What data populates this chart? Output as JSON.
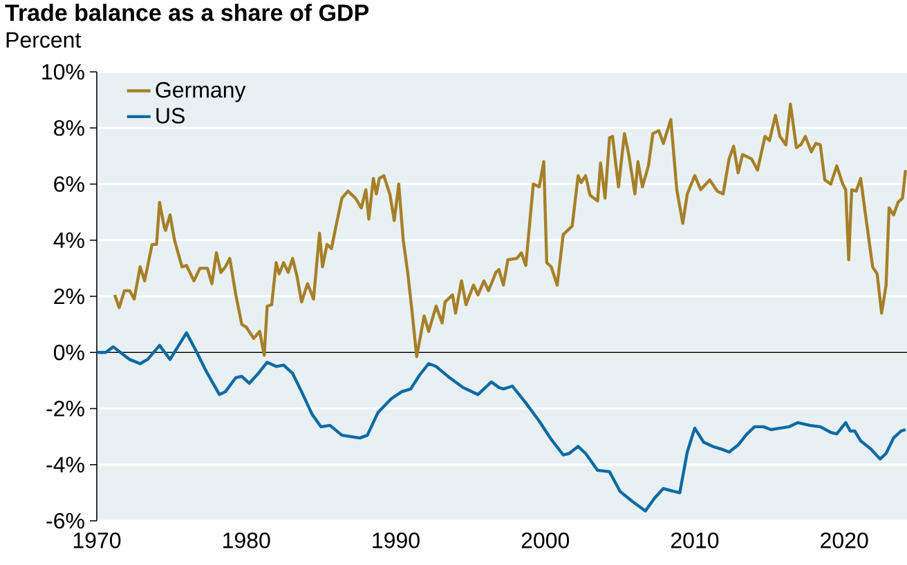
{
  "chart_data": {
    "type": "line",
    "title": "Trade balance as a share of GDP",
    "subtitle": "Percent",
    "xlim": [
      1970,
      2024.2
    ],
    "ylim": [
      -6,
      10
    ],
    "xticks": [
      1970,
      1980,
      1990,
      2000,
      2010,
      2020
    ],
    "yticks": [
      {
        "value": -6,
        "label": "-6%"
      },
      {
        "value": -4,
        "label": "-4%"
      },
      {
        "value": -2,
        "label": "-2%"
      },
      {
        "value": 0,
        "label": "0%"
      },
      {
        "value": 2,
        "label": "2%"
      },
      {
        "value": 4,
        "label": "4%"
      },
      {
        "value": 6,
        "label": "6%"
      },
      {
        "value": 8,
        "label": "8%"
      },
      {
        "value": 10,
        "label": "10%"
      }
    ],
    "grid": "y",
    "legend": "top left",
    "marker": "none",
    "line_style": "solid",
    "ref_lines": [
      {
        "axis": "y",
        "value": 0,
        "color": "#000000"
      }
    ],
    "series": [
      {
        "name": "Germany",
        "color": "#a67f27",
        "x": [
          1971.2,
          1971.5,
          1971.85,
          1972.2,
          1972.5,
          1972.9,
          1973.2,
          1973.7,
          1974.0,
          1974.2,
          1974.5,
          1974.6,
          1974.9,
          1975.2,
          1975.7,
          1976.0,
          1976.5,
          1976.9,
          1977.4,
          1977.7,
          1978.0,
          1978.3,
          1978.6,
          1978.9,
          1979.3,
          1979.7,
          1980.0,
          1980.5,
          1980.9,
          1981.2,
          1981.4,
          1981.7,
          1982.0,
          1982.2,
          1982.5,
          1982.8,
          1983.1,
          1983.4,
          1983.7,
          1984.1,
          1984.5,
          1984.9,
          1985.1,
          1985.4,
          1985.7,
          1986.0,
          1986.4,
          1986.8,
          1987.3,
          1987.7,
          1988.0,
          1988.2,
          1988.5,
          1988.7,
          1988.9,
          1989.2,
          1989.6,
          1989.9,
          1990.2,
          1990.5,
          1990.8,
          1991.1,
          1991.4,
          1991.9,
          1992.2,
          1992.7,
          1993.1,
          1993.3,
          1993.8,
          1994.0,
          1994.4,
          1994.7,
          1995.2,
          1995.5,
          1995.9,
          1996.2,
          1996.7,
          1996.9,
          1997.2,
          1997.5,
          1998.1,
          1998.4,
          1998.7,
          1999.2,
          1999.6,
          1999.9,
          2000.1,
          2000.4,
          2000.8,
          2001.2,
          2001.5,
          2001.8,
          2002.2,
          2002.4,
          2002.7,
          2003.0,
          2003.5,
          2003.7,
          2004.0,
          2004.3,
          2004.5,
          2004.9,
          2005.3,
          2005.6,
          2006.0,
          2006.2,
          2006.5,
          2006.9,
          2007.2,
          2007.6,
          2007.9,
          2008.4,
          2008.8,
          2009.2,
          2009.5,
          2010.0,
          2010.4,
          2011.0,
          2011.5,
          2011.9,
          2012.3,
          2012.6,
          2012.9,
          2013.2,
          2013.8,
          2014.2,
          2014.7,
          2015.0,
          2015.4,
          2015.7,
          2016.1,
          2016.4,
          2016.8,
          2017.1,
          2017.4,
          2017.8,
          2018.1,
          2018.4,
          2018.7,
          2019.1,
          2019.5,
          2019.9,
          2020.1,
          2020.3,
          2020.5,
          2020.8,
          2021.1,
          2021.4,
          2021.9,
          2022.2,
          2022.5,
          2022.8,
          2023.0,
          2023.3,
          2023.6,
          2023.9,
          2024.1
        ],
        "values": [
          2.05,
          1.6,
          2.2,
          2.2,
          1.9,
          3.05,
          2.55,
          3.85,
          3.85,
          5.35,
          4.5,
          4.35,
          4.9,
          4.0,
          3.05,
          3.1,
          2.55,
          3.0,
          3.0,
          2.45,
          3.55,
          2.85,
          3.05,
          3.35,
          2.05,
          1.0,
          0.9,
          0.5,
          0.75,
          -0.1,
          1.65,
          1.7,
          3.2,
          2.8,
          3.2,
          2.85,
          3.35,
          2.7,
          1.8,
          2.45,
          1.9,
          4.25,
          3.05,
          3.85,
          3.7,
          4.5,
          5.5,
          5.75,
          5.5,
          5.15,
          5.8,
          4.75,
          6.2,
          5.65,
          6.2,
          6.3,
          5.65,
          4.7,
          6.0,
          4.0,
          2.85,
          1.4,
          -0.15,
          1.3,
          0.75,
          1.65,
          1.05,
          1.8,
          2.05,
          1.4,
          2.55,
          1.7,
          2.4,
          2.05,
          2.55,
          2.2,
          2.85,
          2.95,
          2.4,
          3.3,
          3.35,
          3.55,
          3.1,
          6.0,
          5.9,
          6.8,
          3.2,
          3.05,
          2.4,
          4.2,
          4.35,
          4.5,
          6.3,
          6.05,
          6.3,
          5.6,
          5.4,
          6.75,
          5.5,
          7.65,
          7.7,
          5.9,
          7.8,
          7.0,
          5.65,
          6.8,
          5.9,
          6.65,
          7.8,
          7.9,
          7.45,
          8.3,
          5.8,
          4.6,
          5.65,
          6.3,
          5.8,
          6.15,
          5.75,
          5.65,
          6.9,
          7.35,
          6.4,
          7.05,
          6.9,
          6.5,
          7.7,
          7.55,
          8.45,
          7.7,
          7.4,
          8.85,
          7.3,
          7.4,
          7.7,
          7.15,
          7.45,
          7.4,
          6.15,
          6.0,
          6.65,
          6.0,
          5.8,
          3.3,
          5.8,
          5.75,
          6.2,
          5.0,
          3.05,
          2.8,
          1.4,
          2.4,
          5.15,
          4.9,
          5.35,
          5.5,
          6.5
        ]
      },
      {
        "name": "US",
        "color": "#0b6aa2",
        "x": [
          1970.0,
          1970.6,
          1971.1,
          1972.2,
          1972.9,
          1973.4,
          1974.2,
          1974.9,
          1976.0,
          1976.6,
          1977.3,
          1978.2,
          1978.6,
          1979.3,
          1979.7,
          1980.2,
          1980.8,
          1981.4,
          1982.0,
          1982.5,
          1983.1,
          1983.7,
          1984.4,
          1985.0,
          1985.6,
          1986.4,
          1987.0,
          1987.6,
          1988.1,
          1988.8,
          1989.7,
          1990.4,
          1991.0,
          1991.6,
          1992.2,
          1992.7,
          1993.6,
          1994.5,
          1995.5,
          1996.4,
          1996.9,
          1997.2,
          1997.8,
          1998.7,
          1999.6,
          2000.4,
          2001.2,
          2001.6,
          2002.2,
          2002.7,
          2003.5,
          2004.3,
          2005.0,
          2005.8,
          2006.7,
          2007.3,
          2007.9,
          2008.6,
          2009.0,
          2009.5,
          2010.0,
          2010.6,
          2011.2,
          2011.8,
          2012.3,
          2012.9,
          2013.5,
          2014.0,
          2014.6,
          2015.1,
          2015.7,
          2016.3,
          2016.9,
          2017.7,
          2018.4,
          2019.1,
          2019.5,
          2020.1,
          2020.4,
          2020.7,
          2021.1,
          2021.8,
          2022.4,
          2022.8,
          2023.3,
          2023.8,
          2024.1
        ],
        "values": [
          0,
          0,
          0.2,
          -0.25,
          -0.4,
          -0.25,
          0.25,
          -0.25,
          0.7,
          0.1,
          -0.65,
          -1.5,
          -1.4,
          -0.9,
          -0.85,
          -1.1,
          -0.75,
          -0.35,
          -0.5,
          -0.45,
          -0.75,
          -1.4,
          -2.2,
          -2.65,
          -2.6,
          -2.95,
          -3.0,
          -3.05,
          -2.95,
          -2.15,
          -1.65,
          -1.4,
          -1.3,
          -0.8,
          -0.4,
          -0.5,
          -0.9,
          -1.25,
          -1.5,
          -1.05,
          -1.25,
          -1.3,
          -1.2,
          -1.8,
          -2.45,
          -3.1,
          -3.65,
          -3.6,
          -3.35,
          -3.6,
          -4.2,
          -4.25,
          -4.95,
          -5.3,
          -5.65,
          -5.2,
          -4.85,
          -4.95,
          -5.0,
          -3.55,
          -2.7,
          -3.2,
          -3.35,
          -3.45,
          -3.55,
          -3.3,
          -2.9,
          -2.65,
          -2.65,
          -2.75,
          -2.7,
          -2.65,
          -2.5,
          -2.6,
          -2.65,
          -2.85,
          -2.9,
          -2.5,
          -2.8,
          -2.8,
          -3.15,
          -3.45,
          -3.8,
          -3.6,
          -3.05,
          -2.8,
          -2.75
        ]
      }
    ]
  }
}
